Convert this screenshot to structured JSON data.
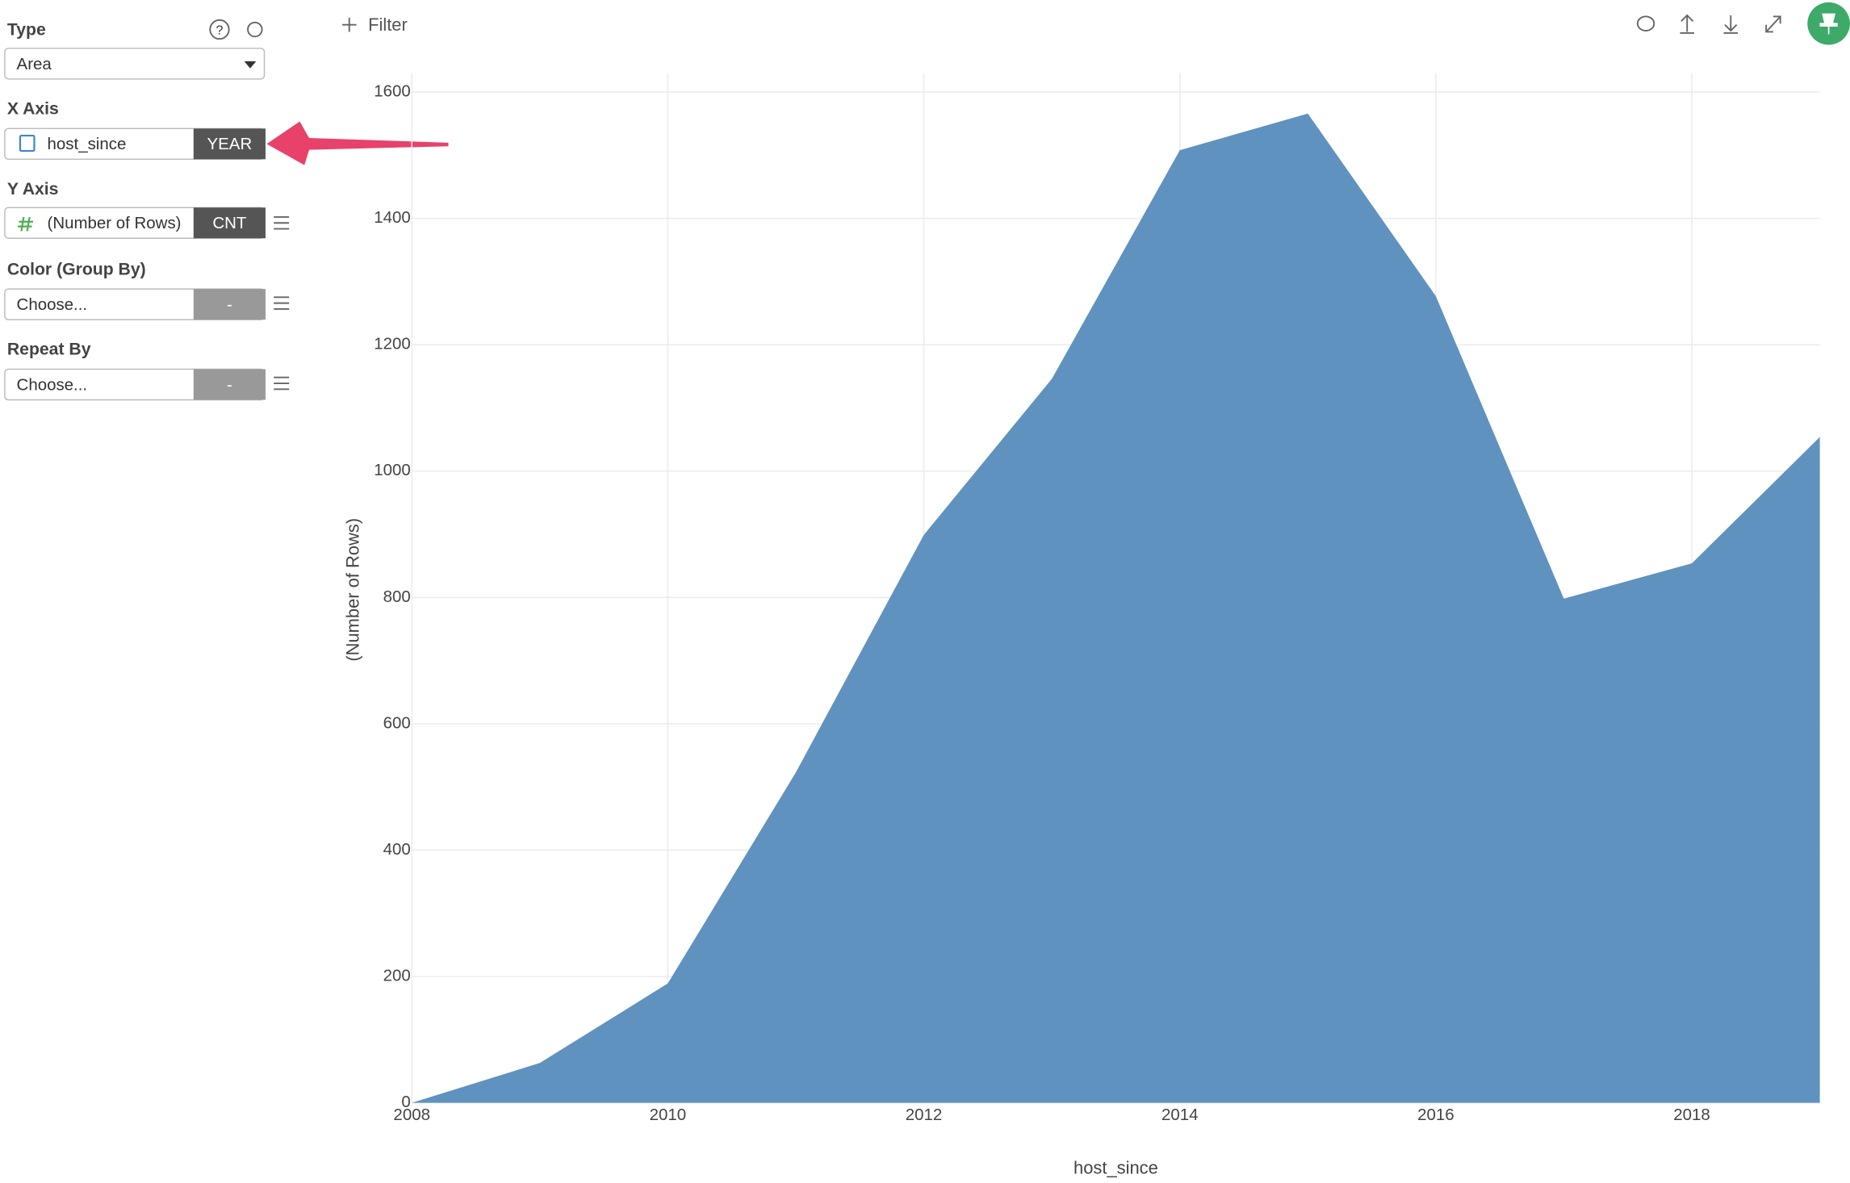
{
  "ui": {
    "type_label": "Type",
    "type_value": "Area",
    "x_axis_label": "X Axis",
    "x_field": "host_since",
    "x_agg": "YEAR",
    "y_axis_label": "Y Axis",
    "y_field": "(Number of Rows)",
    "y_agg": "CNT",
    "color_label": "Color (Group By)",
    "color_value": "Choose...",
    "color_agg": "-",
    "repeat_label": "Repeat By",
    "repeat_value": "Choose...",
    "repeat_agg": "-",
    "filter": "Filter"
  },
  "chart_data": {
    "type": "area",
    "x_label": "host_since",
    "y_label": "(Number of Rows)",
    "color": "#6092c0",
    "x": [
      2008,
      2009,
      2010,
      2011,
      2012,
      2013,
      2014,
      2015,
      2016,
      2017,
      2018,
      2019
    ],
    "values": [
      0,
      63,
      189,
      523,
      899,
      1146,
      1508,
      1566,
      1277,
      798,
      854,
      1054
    ],
    "xlim": [
      2008,
      2019
    ],
    "xticks": [
      2008,
      2010,
      2012,
      2014,
      2016,
      2018
    ],
    "ylim": [
      0,
      1630
    ],
    "yticks": [
      0,
      200,
      400,
      600,
      800,
      1000,
      1200,
      1400,
      1600
    ],
    "grid": true
  }
}
